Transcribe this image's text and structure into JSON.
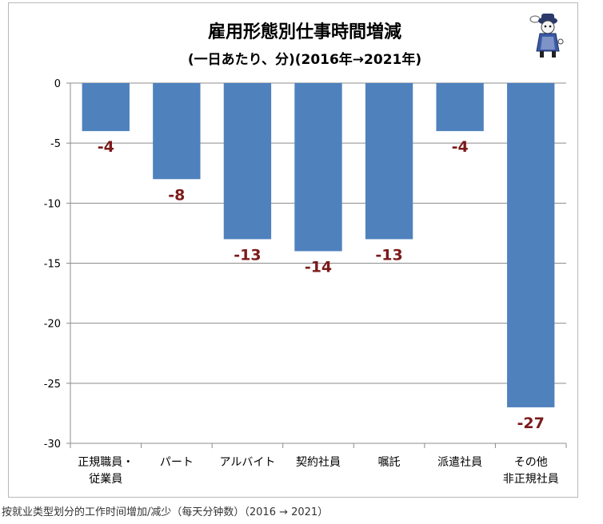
{
  "chart_data": {
    "type": "bar",
    "title": "雇用形態別仕事時間増減",
    "subtitle": "(一日あたり、分)(2016年→2021年)",
    "categories": [
      [
        "正規職員・",
        "従業員"
      ],
      [
        "パート"
      ],
      [
        "アルバイト"
      ],
      [
        "契約社員"
      ],
      [
        "嘱託"
      ],
      [
        "派遣社員"
      ],
      [
        "その他",
        "非正規社員"
      ]
    ],
    "values": [
      -4,
      -8,
      -13,
      -14,
      -13,
      -4,
      -27
    ],
    "data_labels": [
      "-4",
      "-8",
      "-13",
      "-14",
      "-13",
      "-4",
      "-27"
    ],
    "ylim": [
      -30,
      0
    ],
    "yticks": [
      0,
      -5,
      -10,
      -15,
      -20,
      -25,
      -30
    ],
    "xlabel": "",
    "ylabel": "",
    "grid": true,
    "bar_color": "#4f81bd",
    "label_color": "#7b1a1a"
  },
  "caption": "按就业类型划分的工作时间增加/减少（每天分钟数）（2016 → 2021）",
  "mascot": {
    "icon": "girl-mascot-icon"
  }
}
